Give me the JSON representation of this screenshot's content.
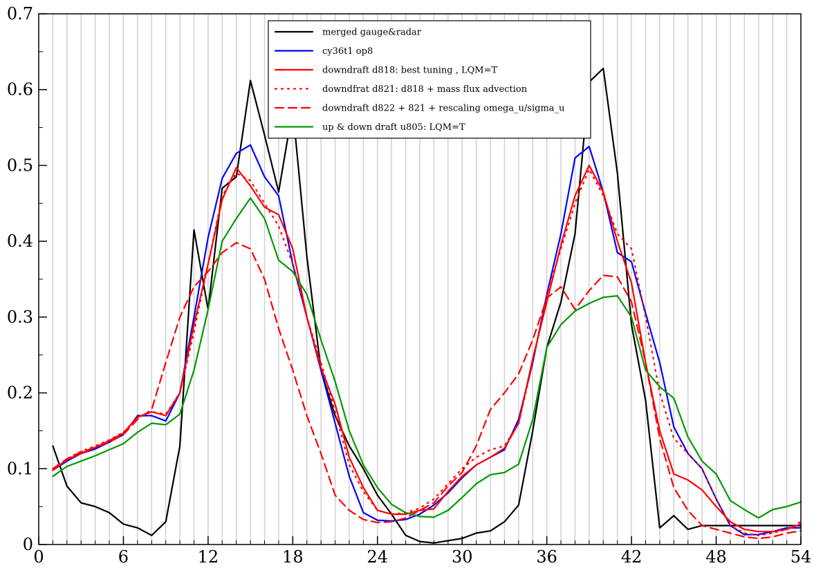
{
  "chart_data": {
    "type": "line",
    "title": "",
    "xlabel": "",
    "ylabel": "",
    "xlim": [
      0,
      54
    ],
    "ylim": [
      0,
      0.7
    ],
    "x_ticks": [
      0,
      6,
      12,
      18,
      24,
      30,
      36,
      42,
      48,
      54
    ],
    "x_tick_labels": [
      "0",
      "6",
      "12",
      "18",
      "24",
      "30",
      "36",
      "42",
      "48",
      "54"
    ],
    "y_ticks": [
      0,
      0.1,
      0.2,
      0.3,
      0.4,
      0.5,
      0.6,
      0.7
    ],
    "y_tick_labels": [
      "0",
      "0.1",
      "0.2",
      "0.3",
      "0.4",
      "0.5",
      "0.6",
      "0.7"
    ],
    "grid": "vertical lines at every integer x",
    "legend_position": "top-center",
    "series": [
      {
        "name": "merged gauge&radar",
        "color": "#000000",
        "dash": "solid",
        "x": [
          1,
          2,
          3,
          4,
          5,
          6,
          7,
          8,
          9,
          10,
          11,
          12,
          13,
          14,
          15,
          16,
          17,
          18,
          19,
          20,
          21,
          22,
          23,
          24,
          25,
          26,
          27,
          28,
          29,
          30,
          31,
          32,
          33,
          34,
          35,
          36,
          37,
          38,
          39,
          40,
          41,
          42,
          43,
          44,
          45,
          46,
          47,
          48,
          49,
          50,
          51,
          52,
          53,
          54
        ],
        "y": [
          0.13,
          0.077,
          0.055,
          0.05,
          0.042,
          0.027,
          0.022,
          0.012,
          0.03,
          0.13,
          0.415,
          0.31,
          0.47,
          0.485,
          0.612,
          0.54,
          0.465,
          0.575,
          0.38,
          0.23,
          0.17,
          0.13,
          0.1,
          0.065,
          0.04,
          0.012,
          0.004,
          0.002,
          0.005,
          0.008,
          0.015,
          0.018,
          0.03,
          0.052,
          0.15,
          0.26,
          0.32,
          0.41,
          0.61,
          0.628,
          0.49,
          0.29,
          0.19,
          0.022,
          0.038,
          0.02,
          0.025,
          0.025,
          0.025,
          0.025,
          0.025,
          0.025,
          0.025,
          0.025
        ]
      },
      {
        "name": "cy36t1 op8",
        "color": "#0000ff",
        "dash": "solid",
        "x": [
          1,
          2,
          3,
          4,
          5,
          6,
          7,
          8,
          9,
          10,
          11,
          12,
          13,
          14,
          15,
          16,
          17,
          18,
          19,
          20,
          21,
          22,
          23,
          24,
          25,
          26,
          27,
          28,
          29,
          30,
          31,
          32,
          33,
          34,
          35,
          36,
          37,
          38,
          39,
          40,
          41,
          42,
          43,
          44,
          45,
          46,
          47,
          48,
          49,
          50,
          51,
          52,
          53,
          54
        ],
        "y": [
          0.098,
          0.11,
          0.12,
          0.126,
          0.135,
          0.145,
          0.17,
          0.17,
          0.163,
          0.2,
          0.3,
          0.405,
          0.483,
          0.516,
          0.527,
          0.485,
          0.46,
          0.37,
          0.3,
          0.23,
          0.16,
          0.09,
          0.042,
          0.032,
          0.031,
          0.033,
          0.04,
          0.052,
          0.068,
          0.088,
          0.105,
          0.115,
          0.125,
          0.165,
          0.24,
          0.33,
          0.41,
          0.51,
          0.525,
          0.465,
          0.385,
          0.373,
          0.305,
          0.24,
          0.155,
          0.12,
          0.1,
          0.06,
          0.025,
          0.013,
          0.013,
          0.017,
          0.022,
          0.022
        ]
      },
      {
        "name": "downdraft d818: best tuning , LQM=T",
        "color": "#ff0000",
        "dash": "solid",
        "x": [
          1,
          2,
          3,
          4,
          5,
          6,
          7,
          8,
          9,
          10,
          11,
          12,
          13,
          14,
          15,
          16,
          17,
          18,
          19,
          20,
          21,
          22,
          23,
          24,
          25,
          26,
          27,
          28,
          29,
          30,
          31,
          32,
          33,
          34,
          35,
          36,
          37,
          38,
          39,
          40,
          41,
          42,
          43,
          44,
          45,
          46,
          47,
          48,
          49,
          50,
          51,
          52,
          53,
          54
        ],
        "y": [
          0.098,
          0.112,
          0.12,
          0.128,
          0.137,
          0.147,
          0.168,
          0.175,
          0.17,
          0.2,
          0.29,
          0.37,
          0.455,
          0.497,
          0.473,
          0.445,
          0.435,
          0.39,
          0.3,
          0.233,
          0.185,
          0.115,
          0.075,
          0.045,
          0.04,
          0.04,
          0.045,
          0.047,
          0.07,
          0.09,
          0.105,
          0.115,
          0.127,
          0.16,
          0.245,
          0.32,
          0.395,
          0.46,
          0.5,
          0.465,
          0.4,
          0.345,
          0.24,
          0.15,
          0.093,
          0.085,
          0.072,
          0.05,
          0.03,
          0.02,
          0.017,
          0.017,
          0.02,
          0.027
        ]
      },
      {
        "name": " downdfrat d821: d818 + mass flux advection",
        "color": "#ff0000",
        "dash": "dotted",
        "x": [
          1,
          2,
          3,
          4,
          5,
          6,
          7,
          8,
          9,
          10,
          11,
          12,
          13,
          14,
          15,
          16,
          17,
          18,
          19,
          20,
          21,
          22,
          23,
          24,
          25,
          26,
          27,
          28,
          29,
          30,
          31,
          32,
          33,
          34,
          35,
          36,
          37,
          38,
          39,
          40,
          41,
          42,
          43,
          44,
          45,
          46,
          47,
          48,
          49,
          50,
          51,
          52,
          53,
          54
        ],
        "y": [
          0.1,
          0.113,
          0.123,
          0.13,
          0.138,
          0.148,
          0.168,
          0.175,
          0.172,
          0.2,
          0.28,
          0.37,
          0.46,
          0.49,
          0.48,
          0.45,
          0.42,
          0.37,
          0.3,
          0.24,
          0.175,
          0.105,
          0.07,
          0.045,
          0.04,
          0.042,
          0.048,
          0.06,
          0.08,
          0.1,
          0.115,
          0.125,
          0.13,
          0.16,
          0.24,
          0.33,
          0.39,
          0.45,
          0.495,
          0.46,
          0.41,
          0.39,
          0.3,
          0.2,
          0.14,
          0.12,
          0.1,
          0.06,
          0.025,
          0.015,
          0.012,
          0.015,
          0.02,
          0.03
        ]
      },
      {
        "name": "downdraft d822 + 821 + rescaling omega_u/sigma_u",
        "color": "#ff0000",
        "dash": "dashed",
        "x": [
          1,
          2,
          3,
          4,
          5,
          6,
          7,
          8,
          9,
          10,
          11,
          12,
          13,
          14,
          15,
          16,
          17,
          18,
          19,
          20,
          21,
          22,
          23,
          24,
          25,
          26,
          27,
          28,
          29,
          30,
          31,
          32,
          33,
          34,
          35,
          36,
          37,
          38,
          39,
          40,
          41,
          42,
          43,
          44,
          45,
          46,
          47,
          48,
          49,
          50,
          51,
          52,
          53,
          54
        ],
        "y": [
          0.1,
          0.113,
          0.122,
          0.128,
          0.135,
          0.145,
          0.165,
          0.178,
          0.24,
          0.3,
          0.34,
          0.36,
          0.385,
          0.398,
          0.39,
          0.35,
          0.285,
          0.23,
          0.17,
          0.12,
          0.065,
          0.045,
          0.033,
          0.029,
          0.03,
          0.035,
          0.045,
          0.055,
          0.077,
          0.095,
          0.13,
          0.178,
          0.2,
          0.225,
          0.27,
          0.325,
          0.34,
          0.31,
          0.335,
          0.355,
          0.353,
          0.32,
          0.24,
          0.14,
          0.075,
          0.045,
          0.025,
          0.02,
          0.015,
          0.01,
          0.008,
          0.01,
          0.015,
          0.018
        ]
      },
      {
        "name": "up & down draft u805: LQM=T",
        "color": "#009900",
        "dash": "solid",
        "x": [
          1,
          2,
          3,
          4,
          5,
          6,
          7,
          8,
          9,
          10,
          11,
          12,
          13,
          14,
          15,
          16,
          17,
          18,
          19,
          20,
          21,
          22,
          23,
          24,
          25,
          26,
          27,
          28,
          29,
          30,
          31,
          32,
          33,
          34,
          35,
          36,
          37,
          38,
          39,
          40,
          41,
          42,
          43,
          44,
          45,
          46,
          47,
          48,
          49,
          50,
          51,
          52,
          53,
          54
        ],
        "y": [
          0.09,
          0.103,
          0.11,
          0.117,
          0.125,
          0.133,
          0.148,
          0.16,
          0.158,
          0.172,
          0.23,
          0.31,
          0.4,
          0.43,
          0.457,
          0.43,
          0.375,
          0.36,
          0.33,
          0.27,
          0.215,
          0.15,
          0.105,
          0.075,
          0.053,
          0.042,
          0.037,
          0.036,
          0.045,
          0.062,
          0.08,
          0.092,
          0.095,
          0.106,
          0.165,
          0.26,
          0.29,
          0.308,
          0.318,
          0.326,
          0.328,
          0.3,
          0.23,
          0.208,
          0.193,
          0.142,
          0.11,
          0.093,
          0.058,
          0.046,
          0.035,
          0.046,
          0.05,
          0.056
        ]
      }
    ]
  }
}
